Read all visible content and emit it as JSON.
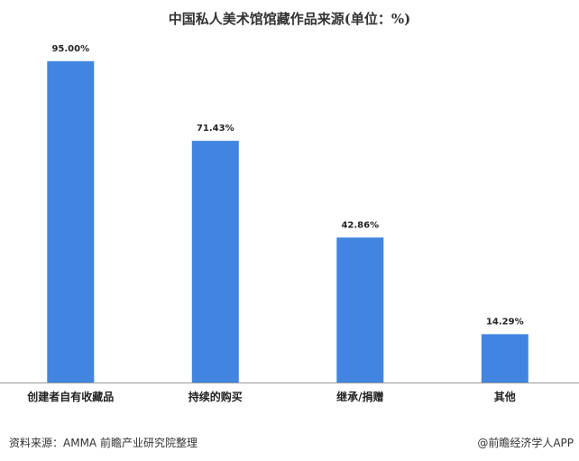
{
  "chart_data": {
    "type": "bar",
    "title": "中国私人美术馆馆藏作品来源(单位：%)",
    "categories": [
      "创建者自有收藏品",
      "持续的购买",
      "继承/捐赠",
      "其他"
    ],
    "values": [
      95.0,
      71.43,
      42.86,
      14.29
    ],
    "value_labels": [
      "95.00%",
      "71.43%",
      "42.86%",
      "14.29%"
    ],
    "xlabel": "",
    "ylabel": "",
    "ylim": [
      0,
      100
    ],
    "grid": false,
    "legend": "none",
    "bar_color": "#4185E1",
    "axis_color": "#999999"
  },
  "footer": {
    "source": "资料来源：AMMA 前瞻产业研究院整理",
    "credit": "@前瞻经济学人APP"
  }
}
